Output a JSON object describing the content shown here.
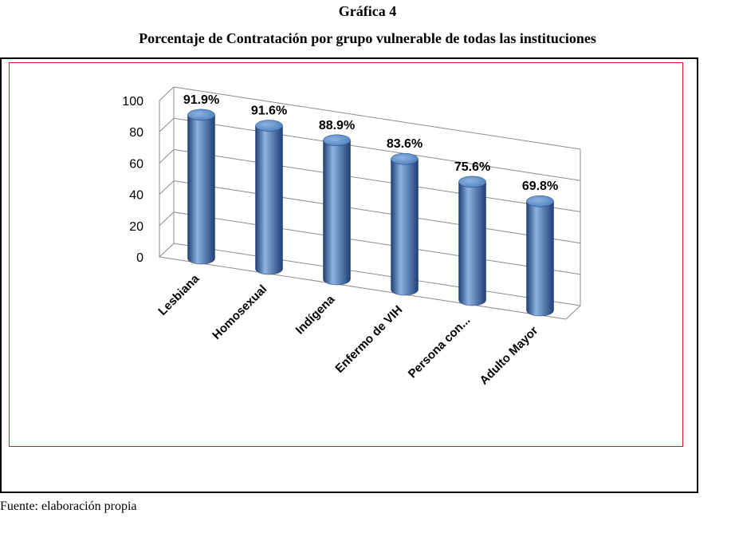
{
  "figure_number": "Gráfica 4",
  "title": "Porcentaje de Contratación por grupo vulnerable de todas las instituciones",
  "source": "Fuente: elaboración propia",
  "chart_data": {
    "type": "bar",
    "style": "3d-cylinder",
    "categories": [
      "Lesbiana",
      "Homosexual",
      "Indígena",
      "Enfermo de VIH",
      "Persona con...",
      "Adulto Mayor"
    ],
    "values": [
      91.9,
      91.6,
      88.9,
      83.6,
      75.6,
      69.8
    ],
    "data_labels": [
      "91.9%",
      "91.6%",
      "88.9%",
      "83.6%",
      "75.6%",
      "69.8%"
    ],
    "ylim": [
      0,
      100
    ],
    "yticks": [
      0,
      20,
      40,
      60,
      80,
      100
    ],
    "grid": true,
    "legend": "none",
    "bar_color": "#4a7ebb",
    "bar_color_dark": "#1f3f75",
    "bar_color_light": "#8db3e2"
  }
}
